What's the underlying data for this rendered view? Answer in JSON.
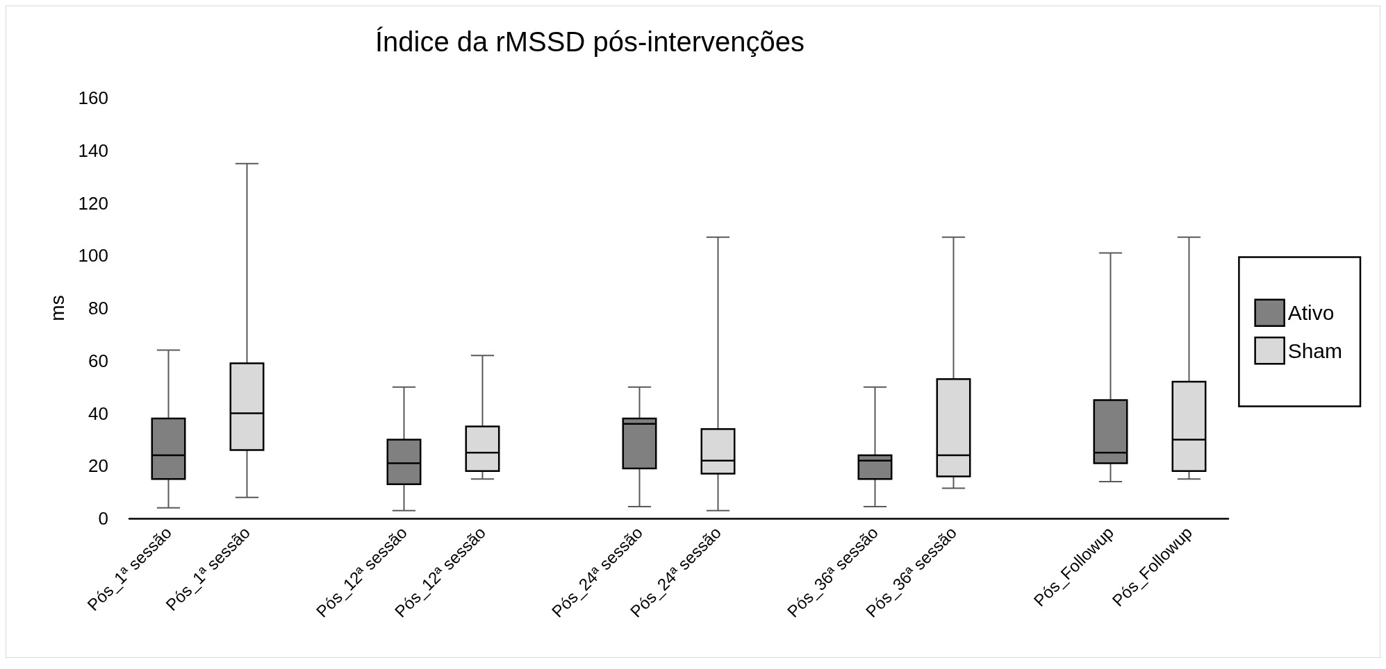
{
  "chart_data": {
    "type": "box",
    "title": "Índice da rMSSD pós-intervenções",
    "ylabel": "ms",
    "categories": [
      "Pós_1ª sessão",
      "Pós_1ª sessão",
      null,
      "Pós_12ª sessão",
      "Pós_12ª sessão",
      null,
      "Pós_24ª sessão",
      "Pós_24ª sessão",
      null,
      "Pós_36ª sessão",
      "Pós_36ª sessão",
      null,
      "Pós_Followup",
      "Pós_Followup"
    ],
    "series": [
      {
        "name": "Ativo",
        "color": "#808080",
        "boxes": [
          {
            "low": 4,
            "q1": 15,
            "median": 24,
            "q3": 38,
            "high": 64
          },
          null,
          null,
          {
            "low": 3,
            "q1": 13,
            "median": 21,
            "q3": 30,
            "high": 50
          },
          null,
          null,
          {
            "low": 4.5,
            "q1": 19,
            "median": 36,
            "q3": 38,
            "high": 50
          },
          null,
          null,
          {
            "low": 4.5,
            "q1": 15,
            "median": 22,
            "q3": 24,
            "high": 50
          },
          null,
          null,
          {
            "low": 14,
            "q1": 21,
            "median": 25,
            "q3": 45,
            "high": 101
          },
          null
        ]
      },
      {
        "name": "Sham",
        "color": "#d9d9d9",
        "boxes": [
          null,
          {
            "low": 8,
            "q1": 26,
            "median": 40,
            "q3": 59,
            "high": 135
          },
          null,
          null,
          {
            "low": 15,
            "q1": 18,
            "median": 25,
            "q3": 35,
            "high": 62
          },
          null,
          null,
          {
            "low": 3,
            "q1": 17,
            "median": 22,
            "q3": 34,
            "high": 107
          },
          null,
          null,
          {
            "low": 11.5,
            "q1": 16,
            "median": 24,
            "q3": 53,
            "high": 107
          },
          null,
          null,
          {
            "low": 15,
            "q1": 18,
            "median": 30,
            "q3": 52,
            "high": 107
          }
        ]
      }
    ],
    "ylim": [
      0,
      160
    ],
    "yticks": [
      0,
      20,
      40,
      60,
      80,
      100,
      120,
      140,
      160
    ],
    "grid": false,
    "legend": "right"
  }
}
